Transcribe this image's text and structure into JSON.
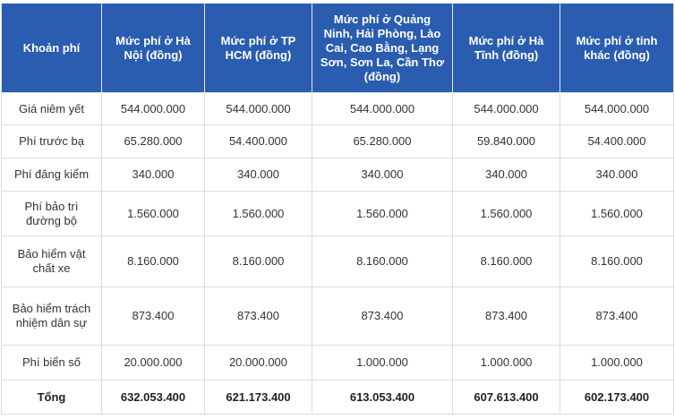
{
  "headers": [
    "Khoản phí",
    "Mức phí ở Hà Nội (đồng)",
    "Mức phí ở TP HCM (đồng)",
    "Mức phí ở Quảng Ninh, Hải Phòng, Lào Cai, Cao Bằng, Lạng Sơn, Sơn La, Cần Thơ (đồng)",
    "Mức phí ở Hà Tĩnh (đồng)",
    "Mức phí ở tỉnh khác (đồng)"
  ],
  "rows": [
    [
      "Giá niêm yết",
      "544.000.000",
      "544.000.000",
      "544.000.000",
      "544.000.000",
      "544.000.000"
    ],
    [
      "Phí trước bạ",
      "65.280.000",
      "54.400.000",
      "65.280.000",
      "59.840.000",
      "54.400.000"
    ],
    [
      "Phí đăng kiểm",
      "340.000",
      "340.000",
      "340.000",
      "340.000",
      "340.000"
    ],
    [
      "Phí bảo trì đường bộ",
      "1.560.000",
      "1.560.000",
      "1.560.000",
      "1.560.000",
      "1.560.000"
    ],
    [
      "Bảo hiểm vật chất xe",
      "8.160.000",
      "8.160.000",
      "8.160.000",
      "8.160.000",
      "8.160.000"
    ],
    [
      "Bảo hiểm trách nhiệm dân sự",
      "873.400",
      "873.400",
      "873.400",
      "873.400",
      "873.400"
    ],
    [
      "Phí biển số",
      "20.000.000",
      "20.000.000",
      "1.000.000",
      "1.000.000",
      "1.000.000"
    ],
    [
      "Tổng",
      "632.053.400",
      "621.173.400",
      "613.053.400",
      "607.613.400",
      "602.173.400"
    ]
  ],
  "colors": {
    "header_bg": "#2a5db0"
  }
}
